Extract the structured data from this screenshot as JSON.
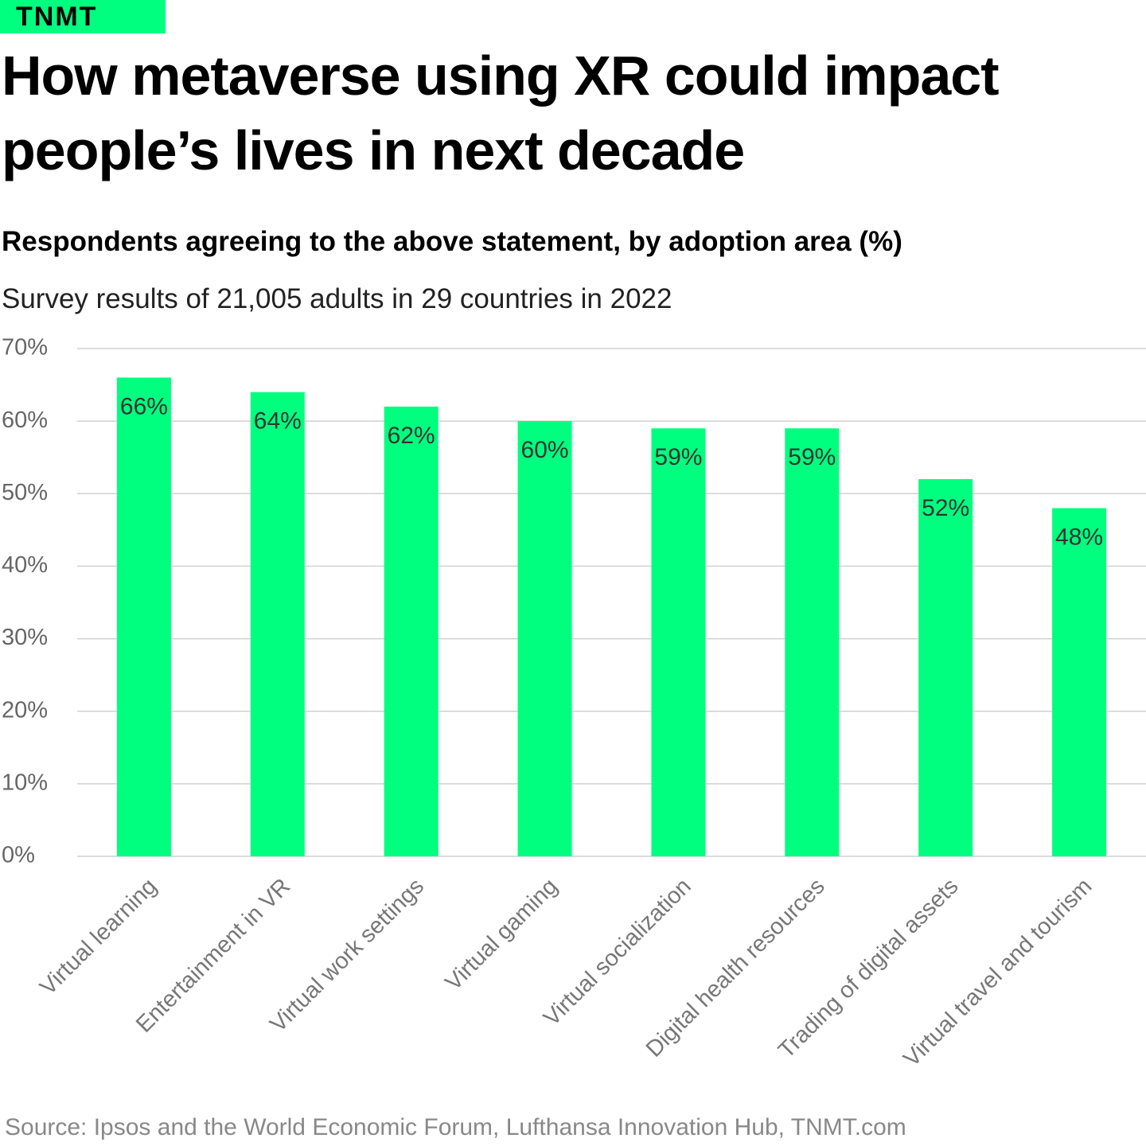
{
  "brand": "TNMT",
  "chart_data": {
    "type": "bar",
    "title": "How metaverse using XR could impact people’s lives in next decade",
    "subtitle": "Respondents agreeing to the above statement, by adoption area (%)",
    "description": "Survey results of 21,005 adults in 29 countries in 2022",
    "source": "Source: Ipsos and the World Economic Forum, Lufthansa Innovation Hub, TNMT.com",
    "categories": [
      "Virtual learning",
      "Entertainment in VR",
      "Virtual work settings",
      "Virtual gaming",
      "Virtual socialization",
      "Digital health resources",
      "Trading of digital assets",
      "Virtual travel and tourism"
    ],
    "values": [
      66,
      64,
      62,
      60,
      59,
      59,
      52,
      48
    ],
    "value_labels": [
      "66%",
      "64%",
      "62%",
      "60%",
      "59%",
      "59%",
      "52%",
      "48%"
    ],
    "color": "#00ff7f",
    "ylim": [
      0,
      70
    ],
    "yticks": [
      {
        "value": 0,
        "label": "0%"
      },
      {
        "value": 10,
        "label": "10%"
      },
      {
        "value": 20,
        "label": "20%"
      },
      {
        "value": 30,
        "label": "30%"
      },
      {
        "value": 40,
        "label": "40%"
      },
      {
        "value": 50,
        "label": "50%"
      },
      {
        "value": 60,
        "label": "60%"
      },
      {
        "value": 70,
        "label": "70%"
      }
    ],
    "grid": true
  }
}
